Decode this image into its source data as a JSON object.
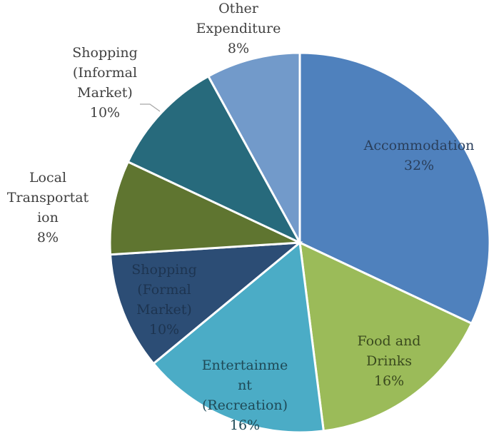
{
  "chart_data": {
    "type": "pie",
    "title": "",
    "slices": [
      {
        "label": [
          "Accommodation"
        ],
        "percent_label": "32%",
        "value": 32,
        "color": "#4F81BD",
        "label_color": "#2A3F5C"
      },
      {
        "label": [
          "Food and",
          "Drinks"
        ],
        "percent_label": "16%",
        "value": 16,
        "color": "#9BBB59",
        "label_color": "#3A4A1E"
      },
      {
        "label": [
          "Entertainme",
          "nt",
          "(Recreation)"
        ],
        "percent_label": "16%",
        "value": 16,
        "color": "#4BACC6",
        "label_color": "#1F4A57"
      },
      {
        "label": [
          "Shopping",
          "(Formal",
          "Market)"
        ],
        "percent_label": "10%",
        "value": 10,
        "color": "#2C4D75",
        "label_color": "#1D3450"
      },
      {
        "label": [
          "Local",
          "Transportat",
          "ion"
        ],
        "percent_label": "8%",
        "value": 8,
        "color": "#5F7530",
        "label_color": "#404040"
      },
      {
        "label": [
          "Shopping",
          "(Informal",
          "Market)"
        ],
        "percent_label": "10%",
        "value": 10,
        "color": "#276A7C",
        "label_color": "#404040"
      },
      {
        "label": [
          "Other",
          "Expenditure"
        ],
        "percent_label": "8%",
        "value": 8,
        "color": "#729ACA",
        "label_color": "#404040"
      }
    ]
  }
}
